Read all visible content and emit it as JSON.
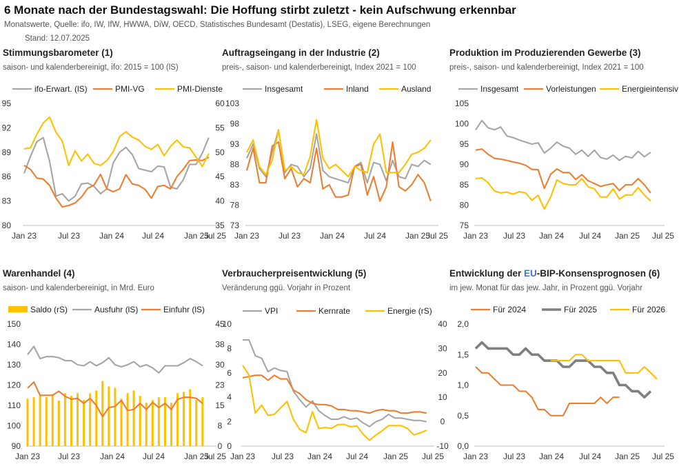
{
  "title": "6 Monate nach der Bundestagswahl: Die Hoffung stirbt zuletzt - kein Aufschwung erkennbar",
  "subtitle": "Monatswerte, Quelle: ifo, IW, IfW, HWWA, DiW, OECD, Statistisches Bundesamt (Destatis), LSEG, eigene Berechnungen",
  "stand": "Stand:  12.07.2025",
  "colors": {
    "gray": "#A5A5A5",
    "darkgray": "#7F7F7F",
    "orange": "#ED7D31",
    "yellow": "#FFC000",
    "eu_blue": "#4472C4"
  },
  "chart_data": [
    {
      "type": "line",
      "title": "Stimmungsbarometer (1)",
      "subtitle": "saison- und kalenderbereinigt, ifo: 2015 = 100 (lS)",
      "x": [
        "2023-01",
        "2023-02",
        "2023-03",
        "2023-04",
        "2023-05",
        "2023-06",
        "2023-07",
        "2023-08",
        "2023-09",
        "2023-10",
        "2023-11",
        "2023-12",
        "2024-01",
        "2024-02",
        "2024-03",
        "2024-04",
        "2024-05",
        "2024-06",
        "2024-07",
        "2024-08",
        "2024-09",
        "2024-10",
        "2024-11",
        "2024-12",
        "2025-01",
        "2025-02",
        "2025-03",
        "2025-04",
        "2025-05",
        "2025-06"
      ],
      "x_ticks": [
        "Jan 23",
        "Jul 23",
        "Jan 24",
        "Jul 24",
        "Jan 25",
        "Jul 25"
      ],
      "y_left": {
        "range": [
          80,
          95
        ],
        "ticks": [
          "80",
          "83",
          "86",
          "89",
          "92",
          "95"
        ]
      },
      "y_right": {
        "range": [
          35,
          60
        ],
        "ticks": [
          "35",
          "40",
          "45",
          "50",
          "55",
          "60"
        ]
      },
      "series": [
        {
          "name": "ifo-Erwart. (lS)",
          "axis": "left",
          "color": "#A5A5A5",
          "values": [
            86.4,
            88.5,
            90.3,
            90.8,
            87.9,
            83.6,
            83.9,
            83.0,
            83.6,
            85.1,
            85.2,
            84.8,
            83.9,
            84.5,
            87.7,
            89.0,
            89.6,
            88.7,
            87.0,
            86.8,
            86.6,
            87.3,
            87.2,
            84.7,
            84.5,
            85.6,
            87.5,
            87.5,
            88.9,
            90.8
          ]
        },
        {
          "name": "PMI-VG",
          "axis": "right",
          "color": "#ED7D31",
          "values": [
            47.3,
            46.5,
            44.7,
            44.5,
            43.2,
            40.6,
            38.8,
            39.1,
            39.6,
            40.8,
            42.6,
            43.3,
            45.5,
            42.5,
            41.9,
            42.5,
            45.4,
            43.5,
            43.2,
            42.4,
            40.6,
            43.0,
            43.2,
            42.5,
            45.0,
            46.5,
            48.3,
            48.4,
            48.3,
            49.0
          ]
        },
        {
          "name": "PMI-Dienste",
          "axis": "right",
          "color": "#FFC000",
          "values": [
            50.7,
            50.9,
            53.7,
            56.0,
            57.2,
            54.1,
            52.3,
            47.3,
            50.3,
            48.2,
            49.6,
            47.7,
            47.3,
            48.3,
            50.1,
            53.2,
            54.2,
            53.1,
            52.5,
            51.2,
            50.6,
            51.6,
            49.3,
            51.2,
            52.5,
            51.1,
            50.9,
            49.0,
            47.1,
            49.7
          ]
        }
      ]
    },
    {
      "type": "line",
      "title": "Auftragseingang in der Industrie (2)",
      "subtitle": "preis-, saison- und kalenderbereinigt, Index 2021 = 100",
      "x": [
        "2023-01",
        "2023-02",
        "2023-03",
        "2023-04",
        "2023-05",
        "2023-06",
        "2023-07",
        "2023-08",
        "2023-09",
        "2023-10",
        "2023-11",
        "2023-12",
        "2024-01",
        "2024-02",
        "2024-03",
        "2024-04",
        "2024-05",
        "2024-06",
        "2024-07",
        "2024-08",
        "2024-09",
        "2024-10",
        "2024-11",
        "2024-12",
        "2025-01",
        "2025-02",
        "2025-03",
        "2025-04",
        "2025-05",
        "2025-06"
      ],
      "x_ticks": [
        "Jan 23",
        "Jul 23",
        "Jan 24",
        "Jul 24",
        "Jan 25",
        "Jul 25"
      ],
      "y_left": {
        "range": [
          73,
          103
        ],
        "ticks": [
          "73",
          "78",
          "83",
          "88",
          "93",
          "98",
          "103"
        ]
      },
      "series": [
        {
          "name": "Insgesamt",
          "color": "#A5A5A5",
          "values": [
            89.5,
            93.0,
            87.0,
            85.0,
            91.0,
            96.5,
            86.0,
            88.0,
            87.5,
            85.0,
            87.0,
            95.5,
            86.5,
            85.0,
            84.5,
            84.0,
            83.5,
            87.5,
            88.5,
            83.5,
            88.5,
            88.0,
            84.0,
            89.0,
            85.0,
            84.5,
            88.0,
            87.5,
            89.0,
            88.0
          ]
        },
        {
          "name": "Inland",
          "color": "#ED7D31",
          "values": [
            86.5,
            92.0,
            83.5,
            83.5,
            92.5,
            93.5,
            84.5,
            87.0,
            82.5,
            84.5,
            83.5,
            92.0,
            82.0,
            83.0,
            80.0,
            80.0,
            80.5,
            87.5,
            88.0,
            80.5,
            85.0,
            79.0,
            82.5,
            93.5,
            82.5,
            81.5,
            83.0,
            85.5,
            83.5,
            79.0
          ]
        },
        {
          "name": "Ausland",
          "color": "#FFC000",
          "values": [
            91.0,
            94.0,
            87.5,
            85.5,
            89.0,
            96.5,
            86.5,
            87.5,
            86.0,
            85.5,
            90.0,
            99.0,
            89.5,
            87.0,
            88.0,
            86.5,
            85.0,
            87.5,
            86.5,
            86.0,
            93.0,
            95.5,
            86.0,
            86.0,
            86.0,
            88.0,
            90.5,
            91.0,
            92.0,
            94.0
          ]
        }
      ]
    },
    {
      "type": "line",
      "title": "Produktion im Produzierenden Gewerbe (3)",
      "subtitle": "preis-, saison- und kalenderbereinigt, Index 2021 = 100",
      "x": [
        "2023-01",
        "2023-02",
        "2023-03",
        "2023-04",
        "2023-05",
        "2023-06",
        "2023-07",
        "2023-08",
        "2023-09",
        "2023-10",
        "2023-11",
        "2023-12",
        "2024-01",
        "2024-02",
        "2024-03",
        "2024-04",
        "2024-05",
        "2024-06",
        "2024-07",
        "2024-08",
        "2024-09",
        "2024-10",
        "2024-11",
        "2024-12",
        "2025-01",
        "2025-02",
        "2025-03",
        "2025-04",
        "2025-05"
      ],
      "x_ticks": [
        "Jan 23",
        "Jul 23",
        "Jan 24",
        "Jul 24",
        "Jan 25",
        "Jul 25"
      ],
      "y_left": {
        "range": [
          75,
          105
        ],
        "ticks": [
          "75",
          "80",
          "85",
          "90",
          "95",
          "100",
          "105"
        ]
      },
      "series": [
        {
          "name": "Insgesamt",
          "color": "#A5A5A5",
          "values": [
            98.5,
            100.8,
            99.0,
            98.5,
            99.2,
            97.0,
            96.6,
            96.0,
            95.5,
            95.0,
            95.3,
            92.8,
            94.0,
            95.5,
            94.5,
            94.0,
            92.5,
            93.5,
            92.0,
            93.5,
            91.7,
            91.3,
            92.3,
            91.0,
            92.0,
            91.6,
            93.2,
            91.9,
            93.0
          ]
        },
        {
          "name": "Vorleistungen",
          "color": "#ED7D31",
          "values": [
            93.5,
            93.8,
            92.5,
            91.5,
            91.3,
            91.0,
            90.6,
            90.3,
            89.8,
            88.8,
            88.7,
            84.1,
            87.6,
            88.9,
            88.0,
            88.0,
            86.3,
            87.5,
            86.0,
            85.3,
            84.6,
            85.0,
            85.3,
            83.6,
            85.0,
            85.0,
            86.5,
            85.0,
            83.0
          ]
        },
        {
          "name": "Energieintensiv",
          "color": "#FFC000",
          "values": [
            86.5,
            86.7,
            85.5,
            83.5,
            83.0,
            83.2,
            82.7,
            83.3,
            83.0,
            81.2,
            82.4,
            79.0,
            82.0,
            86.2,
            85.3,
            85.0,
            85.0,
            86.5,
            84.5,
            84.0,
            82.0,
            82.0,
            84.0,
            81.5,
            82.5,
            82.5,
            84.3,
            82.5,
            81.0
          ]
        }
      ]
    },
    {
      "type": "bar+line",
      "title": "Warenhandel (4)",
      "subtitle": "saison- und kalenderbereinigt, in Mrd. Euro",
      "x": [
        "2023-01",
        "2023-02",
        "2023-03",
        "2023-04",
        "2023-05",
        "2023-06",
        "2023-07",
        "2023-08",
        "2023-09",
        "2023-10",
        "2023-11",
        "2023-12",
        "2024-01",
        "2024-02",
        "2024-03",
        "2024-04",
        "2024-05",
        "2024-06",
        "2024-07",
        "2024-08",
        "2024-09",
        "2024-10",
        "2024-11",
        "2024-12",
        "2025-01",
        "2025-02",
        "2025-03",
        "2025-04",
        "2025-05"
      ],
      "x_ticks": [
        "Jan 23",
        "Jul 23",
        "Jan 24",
        "Jul 24",
        "Jan 25",
        "Jul 25"
      ],
      "y_left": {
        "range": [
          90,
          150
        ],
        "ticks": [
          "90",
          "100",
          "110",
          "120",
          "130",
          "140",
          "150"
        ]
      },
      "y_right": {
        "range": [
          0,
          45
        ],
        "ticks": [
          "0",
          "8",
          "15",
          "23",
          "30",
          "38",
          "45"
        ]
      },
      "series": [
        {
          "name": "Saldo (rS)",
          "type": "bar",
          "axis": "right",
          "color": "#FFC000",
          "values": [
            17.5,
            18.0,
            18.6,
            18.0,
            19.2,
            16.8,
            19.5,
            18.5,
            19.5,
            17.0,
            19.5,
            20.5,
            24.0,
            22.0,
            21.5,
            17.5,
            19.5,
            20.5,
            18.5,
            16.0,
            17.0,
            18.0,
            18.0,
            16.0,
            19.5,
            20.0,
            21.0,
            17.0,
            18.0
          ]
        },
        {
          "name": "Ausfuhr (lS)",
          "type": "line",
          "axis": "left",
          "color": "#A5A5A5",
          "values": [
            135.0,
            139.0,
            133.0,
            134.0,
            134.0,
            133.5,
            132.0,
            132.0,
            130.0,
            129.5,
            131.5,
            129.5,
            131.0,
            133.5,
            130.0,
            129.0,
            130.0,
            131.5,
            129.0,
            130.0,
            128.5,
            126.0,
            129.5,
            129.5,
            129.5,
            131.0,
            133.0,
            131.5,
            129.5
          ]
        },
        {
          "name": "Einfuhr (lS)",
          "type": "line",
          "axis": "left",
          "color": "#ED7D31",
          "values": [
            118.5,
            121.5,
            115.0,
            115.0,
            115.0,
            117.0,
            114.5,
            113.0,
            113.5,
            111.0,
            113.5,
            110.0,
            104.5,
            109.0,
            109.5,
            112.5,
            107.5,
            108.0,
            111.0,
            108.0,
            111.5,
            109.0,
            111.0,
            108.0,
            113.0,
            114.0,
            114.0,
            113.5,
            111.0
          ]
        }
      ]
    },
    {
      "type": "line",
      "title": "Verbraucherpreisentwicklung (5)",
      "subtitle": "Veränderung ggü. Vorjahr in Prozent",
      "x": [
        "2023-01",
        "2023-02",
        "2023-03",
        "2023-04",
        "2023-05",
        "2023-06",
        "2023-07",
        "2023-08",
        "2023-09",
        "2023-10",
        "2023-11",
        "2023-12",
        "2024-01",
        "2024-02",
        "2024-03",
        "2024-04",
        "2024-05",
        "2024-06",
        "2024-07",
        "2024-08",
        "2024-09",
        "2024-10",
        "2024-11",
        "2024-12",
        "2025-01",
        "2025-02",
        "2025-03",
        "2025-04",
        "2025-05",
        "2025-06"
      ],
      "x_ticks": [
        "Jan 23",
        "Jul 23",
        "Jan 24",
        "Jul 24",
        "Jan 25",
        "Jul 25"
      ],
      "y_left": {
        "range": [
          0,
          10
        ],
        "ticks": [
          "0",
          "2",
          "4",
          "6",
          "8",
          "10"
        ]
      },
      "y_right": {
        "range": [
          -10,
          40
        ],
        "ticks": [
          "-10",
          "0",
          "10",
          "20",
          "30",
          "40"
        ]
      },
      "series": [
        {
          "name": "VPI",
          "axis": "left",
          "color": "#A5A5A5",
          "values": [
            8.7,
            8.7,
            7.4,
            7.2,
            6.1,
            6.4,
            6.2,
            6.1,
            4.5,
            3.8,
            3.2,
            3.7,
            2.9,
            2.5,
            2.2,
            2.2,
            2.4,
            2.2,
            2.3,
            1.9,
            1.6,
            2.0,
            2.2,
            2.6,
            2.3,
            2.3,
            2.2,
            2.1,
            2.1,
            2.0
          ]
        },
        {
          "name": "Kernrate",
          "axis": "left",
          "color": "#ED7D31",
          "values": [
            5.6,
            5.7,
            5.8,
            5.8,
            5.4,
            5.8,
            5.5,
            5.5,
            4.6,
            4.3,
            3.8,
            3.5,
            3.4,
            3.4,
            3.3,
            3.0,
            3.0,
            2.9,
            2.9,
            2.8,
            2.7,
            2.9,
            3.0,
            2.9,
            2.9,
            2.7,
            2.7,
            2.8,
            2.8,
            2.7
          ]
        },
        {
          "name": "Energie (rS)",
          "axis": "right",
          "color": "#FFC000",
          "values": [
            23.1,
            19.1,
            3.5,
            6.8,
            2.6,
            3.0,
            5.7,
            8.3,
            1.0,
            -3.2,
            -4.5,
            4.1,
            -2.8,
            -2.4,
            -2.7,
            -1.2,
            -1.1,
            -2.1,
            -1.7,
            -5.1,
            -7.6,
            -5.5,
            -3.7,
            -1.6,
            -1.6,
            -1.6,
            -2.8,
            -5.4,
            -4.6,
            -3.5
          ]
        }
      ]
    },
    {
      "type": "line",
      "title": "Entwicklung der EU-BIP-Konsensprognosen (6)",
      "title_parts": [
        "Entwicklung der ",
        "EU",
        "-BIP-Konsensprognosen (6)"
      ],
      "subtitle": "im jew. Monat für das jew. Jahr, in Prozent ggü. Vorjahr",
      "x": [
        "2023-01",
        "2023-02",
        "2023-03",
        "2023-04",
        "2023-05",
        "2023-06",
        "2023-07",
        "2023-08",
        "2023-09",
        "2023-10",
        "2023-11",
        "2023-12",
        "2024-01",
        "2024-02",
        "2024-03",
        "2024-04",
        "2024-05",
        "2024-06",
        "2024-07",
        "2024-08",
        "2024-09",
        "2024-10",
        "2024-11",
        "2024-12",
        "2025-01",
        "2025-02",
        "2025-03",
        "2025-04",
        "2025-05",
        "2025-06"
      ],
      "x_ticks": [
        "Jan 23",
        "Jul 23",
        "Jan 24",
        "Jul 24",
        "Jan 25",
        "Jul 25"
      ],
      "y_left": {
        "range": [
          0,
          2
        ],
        "ticks": [
          "0,0",
          "0,5",
          "1,0",
          "1,5",
          "2,0"
        ]
      },
      "series": [
        {
          "name": "Für 2024",
          "color": "#ED7D31",
          "values": [
            1.3,
            1.2,
            1.2,
            1.1,
            1.0,
            1.0,
            1.0,
            0.9,
            0.9,
            0.8,
            0.6,
            0.6,
            0.5,
            0.5,
            0.5,
            0.7,
            0.7,
            0.7,
            0.7,
            0.7,
            0.8,
            0.7,
            0.8,
            0.8,
            null,
            null,
            null,
            null,
            null,
            null
          ]
        },
        {
          "name": "Für 2025",
          "color": "#7F7F7F",
          "values": [
            1.6,
            1.7,
            1.6,
            1.6,
            1.6,
            1.6,
            1.5,
            1.5,
            1.6,
            1.5,
            1.5,
            1.4,
            1.4,
            1.4,
            1.3,
            1.3,
            1.4,
            1.4,
            1.4,
            1.3,
            1.3,
            1.2,
            1.2,
            1.0,
            1.0,
            0.9,
            0.9,
            0.8,
            0.9,
            null
          ]
        },
        {
          "name": "Für 2026",
          "color": "#FFC000",
          "values": [
            null,
            null,
            null,
            null,
            null,
            null,
            null,
            null,
            null,
            null,
            null,
            null,
            1.4,
            1.4,
            1.4,
            1.4,
            1.5,
            1.5,
            1.4,
            1.4,
            1.4,
            1.4,
            1.4,
            1.4,
            1.2,
            1.2,
            1.2,
            1.3,
            1.2,
            1.1
          ]
        }
      ]
    }
  ]
}
